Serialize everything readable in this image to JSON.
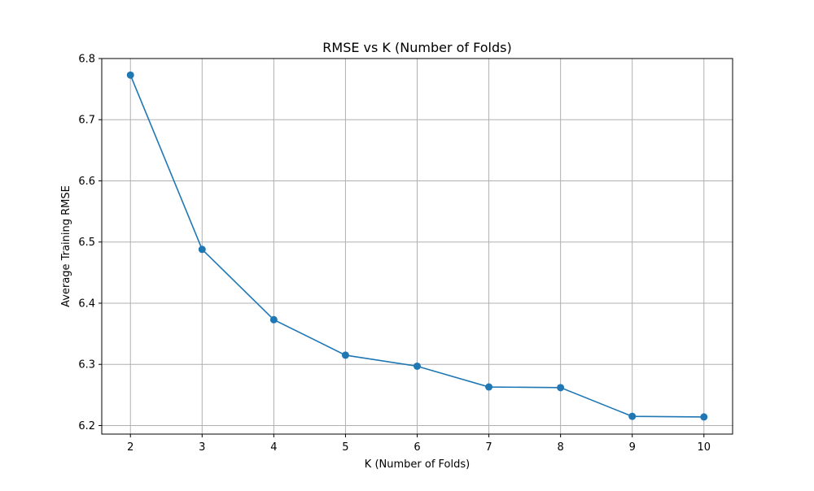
{
  "chart_data": {
    "type": "line",
    "title": "RMSE vs K (Number of Folds)",
    "xlabel": "K (Number of Folds)",
    "ylabel": "Average Training RMSE",
    "x": [
      2,
      3,
      4,
      5,
      6,
      7,
      8,
      9,
      10
    ],
    "series": [
      {
        "values": [
          6.773,
          6.488,
          6.373,
          6.315,
          6.297,
          6.263,
          6.262,
          6.215,
          6.214
        ]
      }
    ],
    "xlim": [
      1.6,
      10.4
    ],
    "ylim": [
      6.186,
      6.8
    ],
    "x_ticks": [
      "2",
      "3",
      "4",
      "5",
      "6",
      "7",
      "8",
      "9",
      "10"
    ],
    "y_ticks": [
      "6.2",
      "6.3",
      "6.4",
      "6.5",
      "6.6",
      "6.7",
      "6.8"
    ],
    "grid": true,
    "line_color": "#1f77b4",
    "grid_color": "#b0b0b0",
    "marker": "circle"
  }
}
